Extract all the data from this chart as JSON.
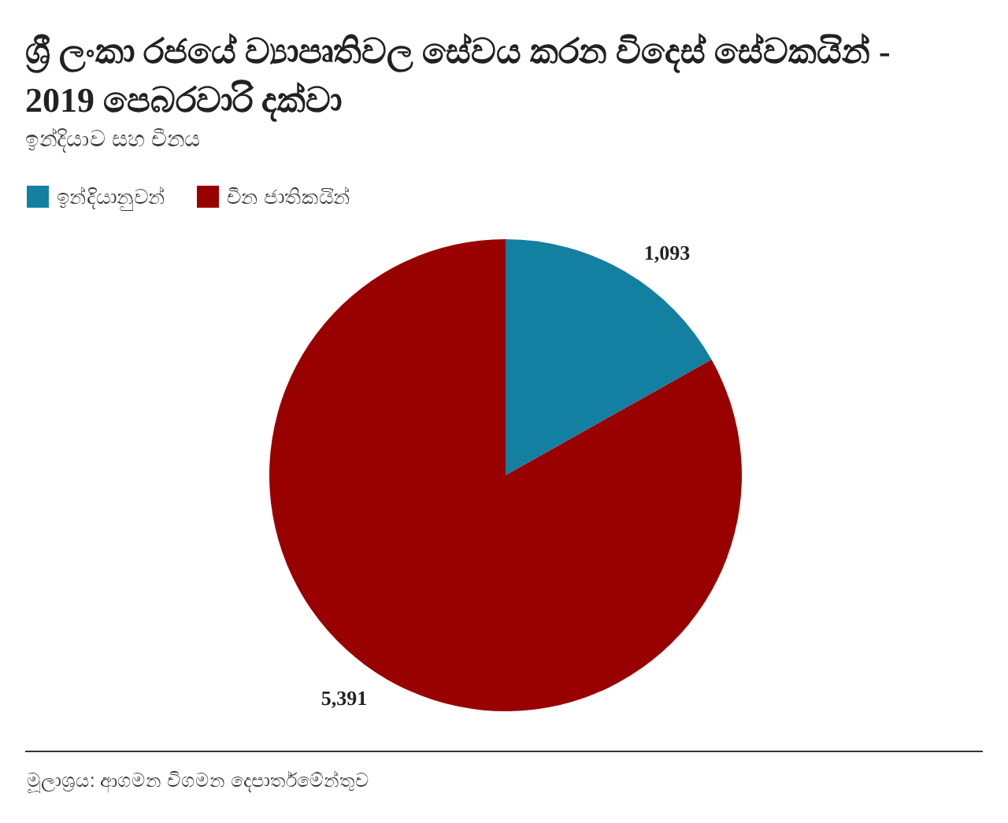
{
  "chart_data": {
    "type": "pie",
    "title": "ශ්‍රී ලංකා රජයේ ව්‍යාපෘතිවල සේවය කරන විදෙස් සේවකයින් - 2019 පෙබරවාරි දක්වා",
    "subtitle": "ඉන්දියාව සහ චීනය",
    "categories": [
      "ඉන්දියානුවන්",
      "චීන ජාතිකයින්"
    ],
    "values": [
      1093,
      5391
    ],
    "value_labels": [
      "1,093",
      "5,391"
    ],
    "colors": [
      "#1380a1",
      "#990000"
    ],
    "legend": "top left",
    "annotations": [
      "මූලාශ්‍රය: ආගමන විගමන දෙපාර්තමේන්තුව"
    ]
  }
}
